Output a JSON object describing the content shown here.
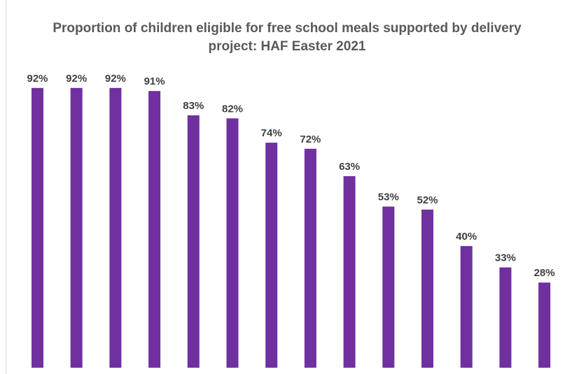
{
  "chart_data": {
    "type": "bar",
    "title": "Proportion of children eligible for free school meals supported by delivery project: HAF Easter 2021",
    "xlabel": "",
    "ylabel": "",
    "ylim": [
      0,
      100
    ],
    "grid": false,
    "legend": "none",
    "bar_color": "#7030a0",
    "values": [
      92,
      92,
      92,
      91,
      83,
      82,
      74,
      72,
      63,
      53,
      52,
      40,
      33,
      28
    ],
    "data_labels": [
      "92%",
      "92%",
      "92%",
      "91%",
      "83%",
      "82%",
      "74%",
      "72%",
      "63%",
      "53%",
      "52%",
      "40%",
      "33%",
      "28%"
    ]
  }
}
